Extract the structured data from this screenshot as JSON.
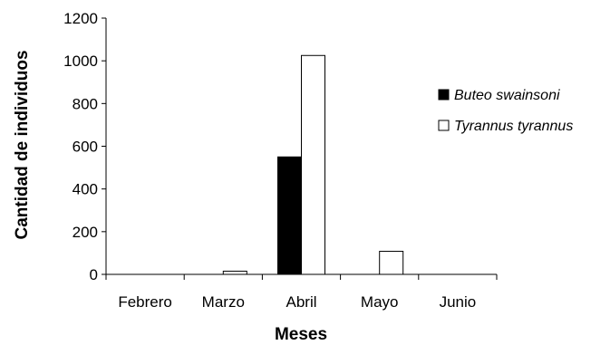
{
  "chart_data": {
    "type": "bar",
    "categories": [
      "Febrero",
      "Marzo",
      "Abril",
      "Mayo",
      "Junio"
    ],
    "series": [
      {
        "name": "Buteo swainsoni",
        "values": [
          0,
          0,
          550,
          0,
          0
        ],
        "color": "#000000"
      },
      {
        "name": "Tyrannus tyrannus",
        "values": [
          0,
          15,
          1025,
          108,
          0
        ],
        "color": "#ffffff"
      }
    ],
    "title": "",
    "xlabel": "Meses",
    "ylabel": "Cantidad de individuos",
    "ylim": [
      0,
      1200
    ],
    "yticks": [
      "0",
      "200",
      "400",
      "600",
      "800",
      "1000",
      "1200"
    ],
    "grid": false,
    "legend": "right"
  }
}
